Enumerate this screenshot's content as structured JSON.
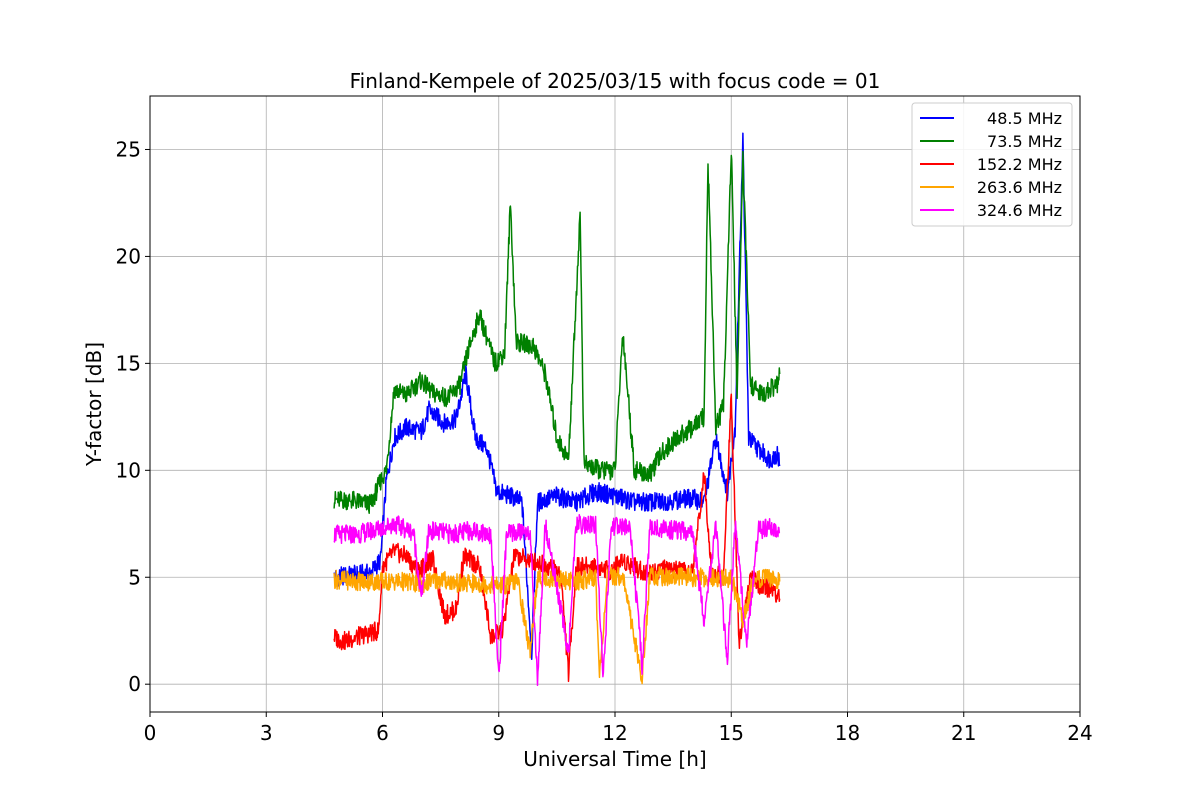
{
  "chart_data": {
    "type": "line",
    "title": "Finland-Kempele of 2025/03/15 with focus code = 01",
    "xlabel": "Universal Time [h]",
    "ylabel": "Y-factor [dB]",
    "xlim": [
      0,
      24
    ],
    "ylim": [
      -1.3,
      27.5
    ],
    "xticks": [
      0,
      3,
      6,
      9,
      12,
      15,
      18,
      21,
      24
    ],
    "yticks": [
      0,
      5,
      10,
      15,
      20,
      25
    ],
    "grid": true,
    "legend_position": "top-right",
    "series": [
      {
        "name": "48.5 MHz",
        "color": "#0000ff",
        "points": [
          [
            4.75,
            5.0
          ],
          [
            5.2,
            5.1
          ],
          [
            5.7,
            5.2
          ],
          [
            5.95,
            5.8
          ],
          [
            6.1,
            9.5
          ],
          [
            6.3,
            11.5
          ],
          [
            6.6,
            12.0
          ],
          [
            7.0,
            11.8
          ],
          [
            7.2,
            12.8
          ],
          [
            7.6,
            12.2
          ],
          [
            7.9,
            12.4
          ],
          [
            8.15,
            14.5
          ],
          [
            8.4,
            11.5
          ],
          [
            8.7,
            11.0
          ],
          [
            8.95,
            9.0
          ],
          [
            9.3,
            8.8
          ],
          [
            9.6,
            8.5
          ],
          [
            9.85,
            1.5
          ],
          [
            10.0,
            8.5
          ],
          [
            10.5,
            8.8
          ],
          [
            11.0,
            8.5
          ],
          [
            11.5,
            9.0
          ],
          [
            12.0,
            8.8
          ],
          [
            12.5,
            8.5
          ],
          [
            13.0,
            8.5
          ],
          [
            13.5,
            8.6
          ],
          [
            14.0,
            8.7
          ],
          [
            14.3,
            8.5
          ],
          [
            14.6,
            11.5
          ],
          [
            14.9,
            9.0
          ],
          [
            15.1,
            12.0
          ],
          [
            15.3,
            25.5
          ],
          [
            15.45,
            11.5
          ],
          [
            15.7,
            11.0
          ],
          [
            16.0,
            10.5
          ],
          [
            16.2,
            10.8
          ],
          [
            16.25,
            10.2
          ]
        ]
      },
      {
        "name": "73.5 MHz",
        "color": "#008000",
        "points": [
          [
            4.75,
            8.6
          ],
          [
            5.2,
            8.6
          ],
          [
            5.7,
            8.4
          ],
          [
            5.95,
            9.5
          ],
          [
            6.1,
            10.0
          ],
          [
            6.3,
            13.8
          ],
          [
            6.6,
            13.5
          ],
          [
            7.0,
            14.2
          ],
          [
            7.3,
            13.6
          ],
          [
            7.7,
            13.4
          ],
          [
            8.0,
            14.0
          ],
          [
            8.2,
            15.5
          ],
          [
            8.5,
            17.3
          ],
          [
            8.9,
            15.0
          ],
          [
            9.15,
            15.5
          ],
          [
            9.3,
            22.5
          ],
          [
            9.45,
            16.0
          ],
          [
            9.9,
            15.8
          ],
          [
            10.2,
            14.5
          ],
          [
            10.5,
            11.5
          ],
          [
            10.8,
            10.5
          ],
          [
            11.1,
            22.0
          ],
          [
            11.2,
            10.3
          ],
          [
            11.6,
            10.0
          ],
          [
            12.0,
            10.0
          ],
          [
            12.2,
            16.5
          ],
          [
            12.5,
            10.0
          ],
          [
            12.9,
            9.8
          ],
          [
            13.2,
            10.8
          ],
          [
            13.6,
            11.5
          ],
          [
            14.0,
            12.0
          ],
          [
            14.3,
            12.5
          ],
          [
            14.4,
            24.5
          ],
          [
            14.6,
            12.0
          ],
          [
            14.8,
            13.0
          ],
          [
            15.0,
            25.0
          ],
          [
            15.15,
            13.5
          ],
          [
            15.3,
            24.5
          ],
          [
            15.5,
            14.0
          ],
          [
            15.8,
            13.5
          ],
          [
            16.0,
            13.8
          ],
          [
            16.2,
            14.0
          ],
          [
            16.25,
            14.5
          ]
        ]
      },
      {
        "name": "152.2 MHz",
        "color": "#ff0000",
        "points": [
          [
            4.75,
            2.2
          ],
          [
            5.0,
            2.0
          ],
          [
            5.5,
            2.3
          ],
          [
            5.9,
            2.5
          ],
          [
            6.0,
            5.5
          ],
          [
            6.3,
            6.2
          ],
          [
            6.6,
            6.0
          ],
          [
            6.9,
            5.3
          ],
          [
            7.3,
            5.8
          ],
          [
            7.6,
            3.2
          ],
          [
            7.9,
            3.5
          ],
          [
            8.1,
            6.0
          ],
          [
            8.5,
            5.5
          ],
          [
            8.8,
            2.2
          ],
          [
            9.1,
            2.5
          ],
          [
            9.4,
            6.0
          ],
          [
            9.8,
            5.8
          ],
          [
            10.2,
            5.6
          ],
          [
            10.6,
            5.2
          ],
          [
            10.8,
            0.5
          ],
          [
            11.0,
            5.5
          ],
          [
            11.5,
            5.5
          ],
          [
            11.9,
            5.3
          ],
          [
            12.2,
            5.8
          ],
          [
            12.5,
            5.5
          ],
          [
            12.8,
            5.2
          ],
          [
            13.2,
            5.4
          ],
          [
            13.6,
            5.3
          ],
          [
            14.0,
            5.2
          ],
          [
            14.3,
            9.8
          ],
          [
            14.5,
            5.2
          ],
          [
            14.8,
            5.0
          ],
          [
            15.0,
            13.5
          ],
          [
            15.2,
            2.0
          ],
          [
            15.5,
            5.0
          ],
          [
            15.8,
            4.5
          ],
          [
            16.0,
            4.5
          ],
          [
            16.25,
            4.0
          ]
        ]
      },
      {
        "name": "263.6 MHz",
        "color": "#ffa500",
        "points": [
          [
            4.75,
            4.9
          ],
          [
            5.5,
            4.8
          ],
          [
            6.0,
            4.8
          ],
          [
            6.5,
            4.8
          ],
          [
            7.0,
            4.7
          ],
          [
            7.5,
            4.9
          ],
          [
            8.0,
            4.7
          ],
          [
            8.5,
            4.7
          ],
          [
            9.0,
            4.6
          ],
          [
            9.5,
            4.8
          ],
          [
            9.8,
            1.5
          ],
          [
            10.0,
            4.9
          ],
          [
            10.5,
            4.9
          ],
          [
            11.0,
            4.8
          ],
          [
            11.5,
            5.0
          ],
          [
            11.6,
            0.3
          ],
          [
            11.8,
            5.0
          ],
          [
            12.2,
            5.1
          ],
          [
            12.7,
            0.2
          ],
          [
            12.9,
            5.1
          ],
          [
            13.5,
            5.0
          ],
          [
            14.0,
            5.0
          ],
          [
            14.3,
            5.0
          ],
          [
            14.7,
            4.9
          ],
          [
            15.0,
            5.0
          ],
          [
            15.3,
            3.0
          ],
          [
            15.6,
            5.0
          ],
          [
            16.0,
            4.9
          ],
          [
            16.25,
            4.8
          ]
        ]
      },
      {
        "name": "324.6 MHz",
        "color": "#ff00ff",
        "points": [
          [
            4.75,
            7.0
          ],
          [
            5.3,
            7.0
          ],
          [
            5.8,
            7.2
          ],
          [
            6.3,
            7.5
          ],
          [
            6.8,
            7.1
          ],
          [
            7.0,
            4.0
          ],
          [
            7.2,
            7.2
          ],
          [
            7.8,
            7.0
          ],
          [
            8.3,
            7.2
          ],
          [
            8.8,
            7.0
          ],
          [
            9.0,
            0.2
          ],
          [
            9.2,
            7.0
          ],
          [
            9.8,
            7.2
          ],
          [
            10.0,
            0.2
          ],
          [
            10.2,
            7.5
          ],
          [
            10.8,
            1.5
          ],
          [
            11.0,
            7.5
          ],
          [
            11.5,
            7.4
          ],
          [
            11.7,
            0.3
          ],
          [
            11.9,
            7.4
          ],
          [
            12.4,
            7.3
          ],
          [
            12.7,
            0.8
          ],
          [
            12.9,
            7.3
          ],
          [
            13.5,
            7.2
          ],
          [
            14.0,
            7.1
          ],
          [
            14.3,
            3.0
          ],
          [
            14.6,
            7.4
          ],
          [
            14.9,
            1.0
          ],
          [
            15.1,
            7.5
          ],
          [
            15.4,
            2.0
          ],
          [
            15.7,
            7.2
          ],
          [
            16.0,
            7.3
          ],
          [
            16.25,
            7.1
          ]
        ]
      }
    ]
  }
}
